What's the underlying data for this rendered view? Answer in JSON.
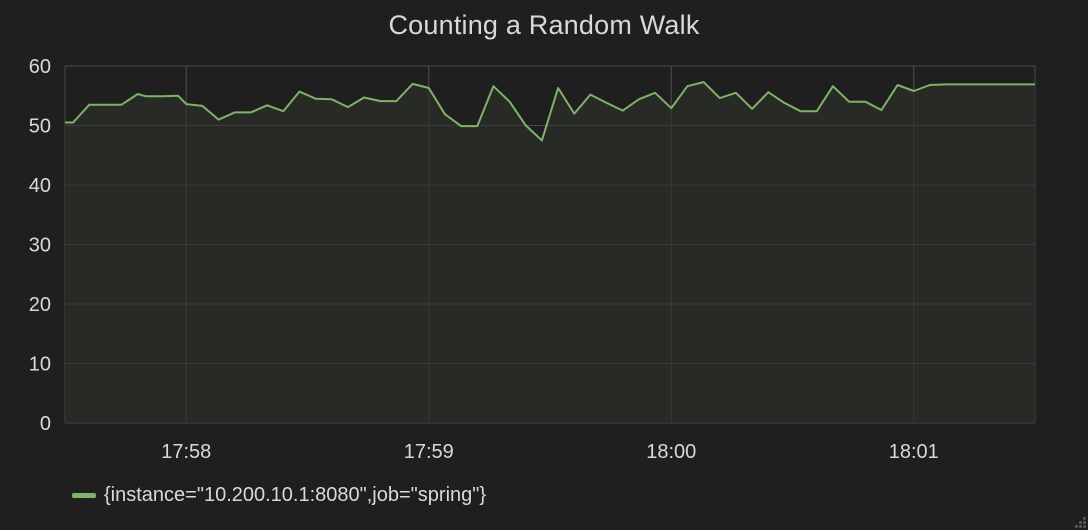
{
  "panel": {
    "title": "Counting a Random Walk"
  },
  "colors": {
    "series": "#7eb26d",
    "fill": "#272a25",
    "grid": "#4a4a4c",
    "background": "#1f1f20",
    "text": "#d8d9da"
  },
  "chart_data": {
    "type": "area",
    "title": "Counting a Random Walk",
    "xlabel": "",
    "ylabel": "",
    "ylim": [
      0,
      60
    ],
    "xlim": [
      "17:57:30",
      "18:01:30"
    ],
    "yticks": [
      "0",
      "10",
      "20",
      "30",
      "40",
      "50",
      "60"
    ],
    "xticks": [
      "17:58",
      "17:59",
      "18:00",
      "18:01"
    ],
    "grid": true,
    "legend_position": "bottom-left",
    "series": [
      {
        "name": "{instance=\"10.200.10.1:8080\",job=\"spring\"}",
        "x": [
          "17:57:30",
          "17:57:32",
          "17:57:36",
          "17:57:40",
          "17:57:44",
          "17:57:48",
          "17:57:50",
          "17:57:54",
          "17:57:58",
          "17:58:00",
          "17:58:04",
          "17:58:08",
          "17:58:12",
          "17:58:16",
          "17:58:20",
          "17:58:24",
          "17:58:28",
          "17:58:32",
          "17:58:36",
          "17:58:40",
          "17:58:44",
          "17:58:48",
          "17:58:52",
          "17:58:56",
          "17:59:00",
          "17:59:04",
          "17:59:08",
          "17:59:12",
          "17:59:16",
          "17:59:20",
          "17:59:24",
          "17:59:28",
          "17:59:32",
          "17:59:36",
          "17:59:40",
          "17:59:44",
          "17:59:48",
          "17:59:52",
          "17:59:56",
          "18:00:00",
          "18:00:04",
          "18:00:08",
          "18:00:12",
          "18:00:16",
          "18:00:20",
          "18:00:24",
          "18:00:28",
          "18:00:32",
          "18:00:36",
          "18:00:40",
          "18:00:44",
          "18:00:48",
          "18:00:52",
          "18:00:56",
          "18:01:00",
          "18:01:04",
          "18:01:08",
          "18:01:12",
          "18:01:16",
          "18:01:20",
          "18:01:24",
          "18:01:28",
          "18:01:30"
        ],
        "values": [
          50.5,
          50.5,
          53.5,
          53.5,
          53.5,
          55.3,
          54.9,
          54.9,
          55.0,
          53.6,
          53.3,
          51.0,
          52.2,
          52.2,
          53.4,
          52.4,
          55.7,
          54.5,
          54.4,
          53.1,
          54.7,
          54.1,
          54.1,
          57.0,
          56.3,
          51.9,
          49.9,
          49.9,
          56.6,
          54.0,
          50.0,
          47.5,
          56.3,
          52.0,
          55.2,
          53.8,
          52.5,
          54.4,
          55.5,
          52.9,
          56.6,
          57.3,
          54.6,
          55.5,
          52.8,
          55.6,
          53.8,
          52.4,
          52.4,
          56.6,
          54.0,
          54.0,
          52.6,
          56.8,
          55.8,
          56.8,
          56.9,
          56.9,
          56.9,
          56.9,
          56.9,
          56.9,
          56.9
        ]
      }
    ]
  },
  "legend": {
    "items": [
      {
        "label": "{instance=\"10.200.10.1:8080\",job=\"spring\"}"
      }
    ]
  }
}
